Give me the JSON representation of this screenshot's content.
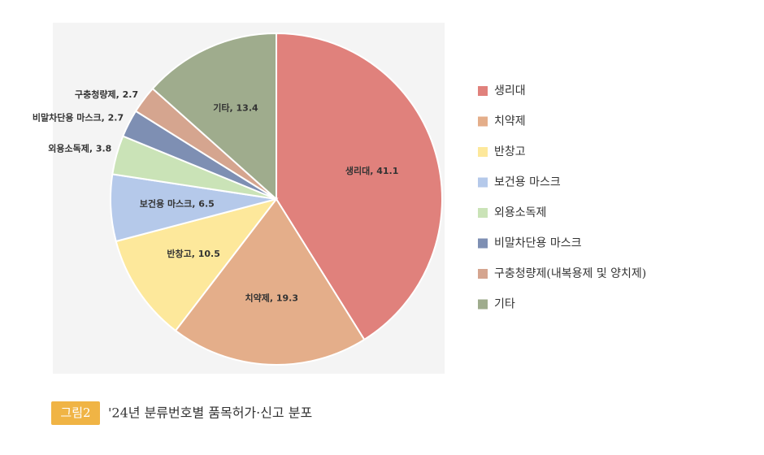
{
  "chart_data": {
    "type": "pie",
    "figure_tag": "그림2",
    "title": "'24년 분류번호별 품목허가·신고 분포",
    "categories": [
      "생리대",
      "치약제",
      "반창고",
      "보건용 마스크",
      "외용소독제",
      "비말차단용 마스크",
      "구충청량제(내복용제 및 양치제)",
      "기타"
    ],
    "values": [
      41.1,
      19.3,
      10.5,
      6.5,
      3.8,
      2.7,
      2.7,
      13.4
    ],
    "value_labels": [
      "생리대, 41.1",
      "치약제, 19.3",
      "반창고, 10.5",
      "보건용 마스크, 6.5",
      "외용소독제,  3.8",
      "비말차단용 마스크, 2.7",
      "구충청량제, 2.7",
      "기타, 13.4"
    ],
    "colors": [
      "#e0817c",
      "#e4ae8a",
      "#fde89b",
      "#b5c9ea",
      "#cae3b7",
      "#7e8fb3",
      "#d5a58f",
      "#9fac8d"
    ],
    "legend": "right"
  }
}
